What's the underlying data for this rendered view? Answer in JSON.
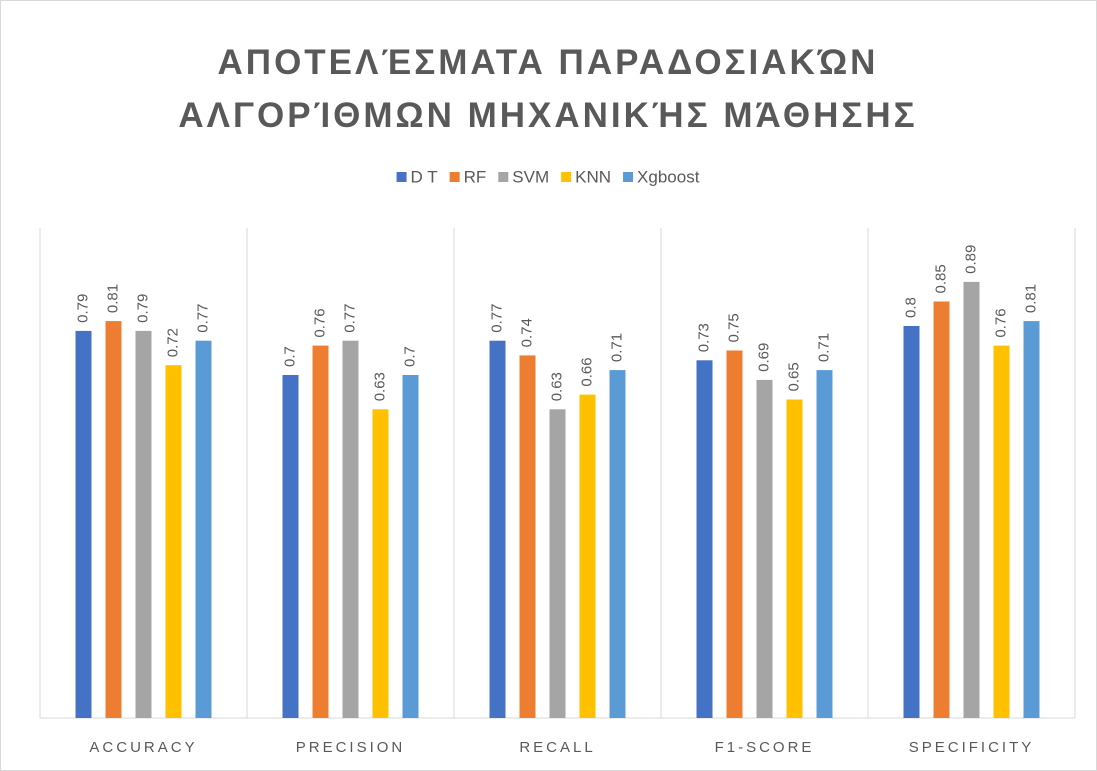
{
  "chart_data": {
    "type": "bar",
    "title": "ΑΠΟΤΕΛΈΣΜΑΤΑ ΠΑΡΑΔΟΣΙΑΚΏΝ ΑΛΓΟΡΊΘΜΩΝ ΜΗΧΑΝΙΚΉΣ ΜΆΘΗΣΗΣ",
    "categories": [
      "ACCURACY",
      "PRECISION",
      "RECALL",
      "F1-SCORE",
      "SPECIFICITY"
    ],
    "series": [
      {
        "name": "D T",
        "color": "#4472c4",
        "values": [
          0.79,
          0.7,
          0.77,
          0.73,
          0.8
        ]
      },
      {
        "name": "RF",
        "color": "#ed7d31",
        "values": [
          0.81,
          0.76,
          0.74,
          0.75,
          0.85
        ]
      },
      {
        "name": "SVM",
        "color": "#a5a5a5",
        "values": [
          0.79,
          0.77,
          0.63,
          0.69,
          0.89
        ]
      },
      {
        "name": "KNN",
        "color": "#ffc000",
        "values": [
          0.72,
          0.63,
          0.66,
          0.65,
          0.76
        ]
      },
      {
        "name": "Xgboost",
        "color": "#5b9bd5",
        "values": [
          0.77,
          0.7,
          0.71,
          0.71,
          0.81
        ]
      }
    ],
    "ylim": [
      0,
      1
    ],
    "legend": "top"
  }
}
